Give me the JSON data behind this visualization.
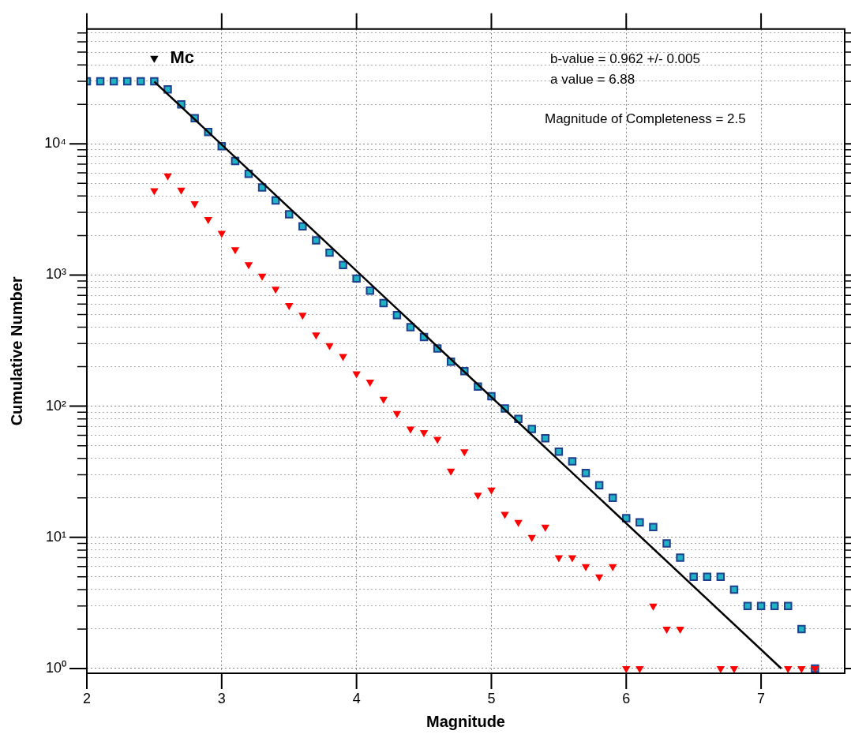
{
  "chart_data": {
    "type": "scatter",
    "xlabel": "Magnitude",
    "ylabel": "Cumulative Number",
    "log": "y",
    "grid": true,
    "legend": false,
    "xlim": [
      2,
      7.62
    ],
    "xticks": [
      2,
      3,
      4,
      5,
      6,
      7
    ],
    "ylim": [
      0.92,
      75000
    ],
    "yticks": [
      {
        "value": 1,
        "label": "10⁰"
      },
      {
        "value": 2,
        "label": null
      },
      {
        "value": 3,
        "label": null
      },
      {
        "value": 4,
        "label": null
      },
      {
        "value": 5,
        "label": null
      },
      {
        "value": 6,
        "label": null
      },
      {
        "value": 7,
        "label": null
      },
      {
        "value": 8,
        "label": null
      },
      {
        "value": 9,
        "label": null
      },
      {
        "value": 10,
        "label": "10¹"
      },
      {
        "value": 20,
        "label": null
      },
      {
        "value": 30,
        "label": null
      },
      {
        "value": 40,
        "label": null
      },
      {
        "value": 50,
        "label": null
      },
      {
        "value": 60,
        "label": null
      },
      {
        "value": 70,
        "label": null
      },
      {
        "value": 80,
        "label": null
      },
      {
        "value": 90,
        "label": null
      },
      {
        "value": 100,
        "label": "10²"
      },
      {
        "value": 200,
        "label": null
      },
      {
        "value": 300,
        "label": null
      },
      {
        "value": 400,
        "label": null
      },
      {
        "value": 500,
        "label": null
      },
      {
        "value": 600,
        "label": null
      },
      {
        "value": 700,
        "label": null
      },
      {
        "value": 800,
        "label": null
      },
      {
        "value": 900,
        "label": null
      },
      {
        "value": 1000,
        "label": "10³"
      },
      {
        "value": 2000,
        "label": null
      },
      {
        "value": 3000,
        "label": null
      },
      {
        "value": 4000,
        "label": null
      },
      {
        "value": 5000,
        "label": null
      },
      {
        "value": 6000,
        "label": null
      },
      {
        "value": 7000,
        "label": null
      },
      {
        "value": 8000,
        "label": null
      },
      {
        "value": 9000,
        "label": null
      },
      {
        "value": 10000,
        "label": "10⁴"
      },
      {
        "value": 20000,
        "label": null
      },
      {
        "value": 30000,
        "label": null
      },
      {
        "value": 40000,
        "label": null
      },
      {
        "value": 50000,
        "label": null
      },
      {
        "value": 60000,
        "label": null
      },
      {
        "value": 70000,
        "label": null
      }
    ],
    "x": [
      2.0,
      2.1,
      2.2,
      2.3,
      2.4,
      2.5,
      2.6,
      2.7,
      2.8,
      2.9,
      3.0,
      3.1,
      3.2,
      3.3,
      3.4,
      3.5,
      3.6,
      3.7,
      3.8,
      3.9,
      4.0,
      4.1,
      4.2,
      4.3,
      4.4,
      4.5,
      4.6,
      4.7,
      4.8,
      4.9,
      5.0,
      5.1,
      5.2,
      5.3,
      5.4,
      5.5,
      5.6,
      5.7,
      5.8,
      5.9,
      6.0,
      6.1,
      6.2,
      6.3,
      6.4,
      6.5,
      6.6,
      6.7,
      6.8,
      6.9,
      7.0,
      7.1,
      7.2,
      7.3,
      7.4
    ],
    "series": [
      {
        "type": "scatter",
        "marker": "square",
        "color": "#1fb4c4",
        "values": [
          30000,
          30000,
          30000,
          30000,
          30000,
          30000,
          26000,
          20000,
          15700,
          12300,
          9600,
          7400,
          5900,
          4650,
          3700,
          2900,
          2350,
          1840,
          1480,
          1190,
          940,
          760,
          610,
          495,
          400,
          337,
          275,
          218,
          185,
          141,
          119,
          96,
          80,
          67,
          57,
          45,
          38,
          31,
          25,
          20,
          14,
          13,
          12,
          9,
          7,
          5,
          5,
          5,
          4,
          3,
          3,
          3,
          3,
          2,
          1
        ]
      },
      {
        "type": "scatter",
        "marker": "triangle",
        "color": "#ff0000",
        "values": [
          null,
          null,
          null,
          null,
          null,
          4400,
          5700,
          4450,
          3500,
          2650,
          2080,
          1560,
          1200,
          980,
          780,
          585,
          495,
          350,
          290,
          240,
          177,
          153,
          113,
          88,
          67,
          63,
          56,
          32,
          45,
          21,
          23,
          15,
          13,
          10,
          12,
          7,
          7,
          6,
          5,
          6,
          1,
          1,
          3,
          2,
          2,
          null,
          null,
          1,
          1,
          null,
          null,
          null,
          1,
          1,
          1
        ]
      },
      {
        "type": "line",
        "marker": "none",
        "line_style": "solid",
        "color": "#000000",
        "x": [
          2.5,
          7.15
        ],
        "values": [
          29850,
          1
        ]
      },
      {
        "type": "scatter",
        "marker": "triangle",
        "name": "Mc",
        "color": "#000000",
        "values": [
          null,
          null,
          null,
          null,
          null,
          45000,
          null,
          null,
          null,
          null,
          null,
          null,
          null,
          null,
          null,
          null,
          null,
          null,
          null,
          null,
          null,
          null,
          null,
          null,
          null,
          null,
          null,
          null,
          null,
          null,
          null,
          null,
          null,
          null,
          null,
          null,
          null,
          null,
          null,
          null,
          null,
          null,
          null,
          null,
          null,
          null,
          null,
          null,
          null,
          null,
          null,
          null,
          null,
          null,
          null
        ]
      }
    ],
    "annotations": [
      "b-value = 0.962 +/- 0.005",
      "a value = 6.88",
      "Magnitude of Completeness = 2.5"
    ]
  }
}
